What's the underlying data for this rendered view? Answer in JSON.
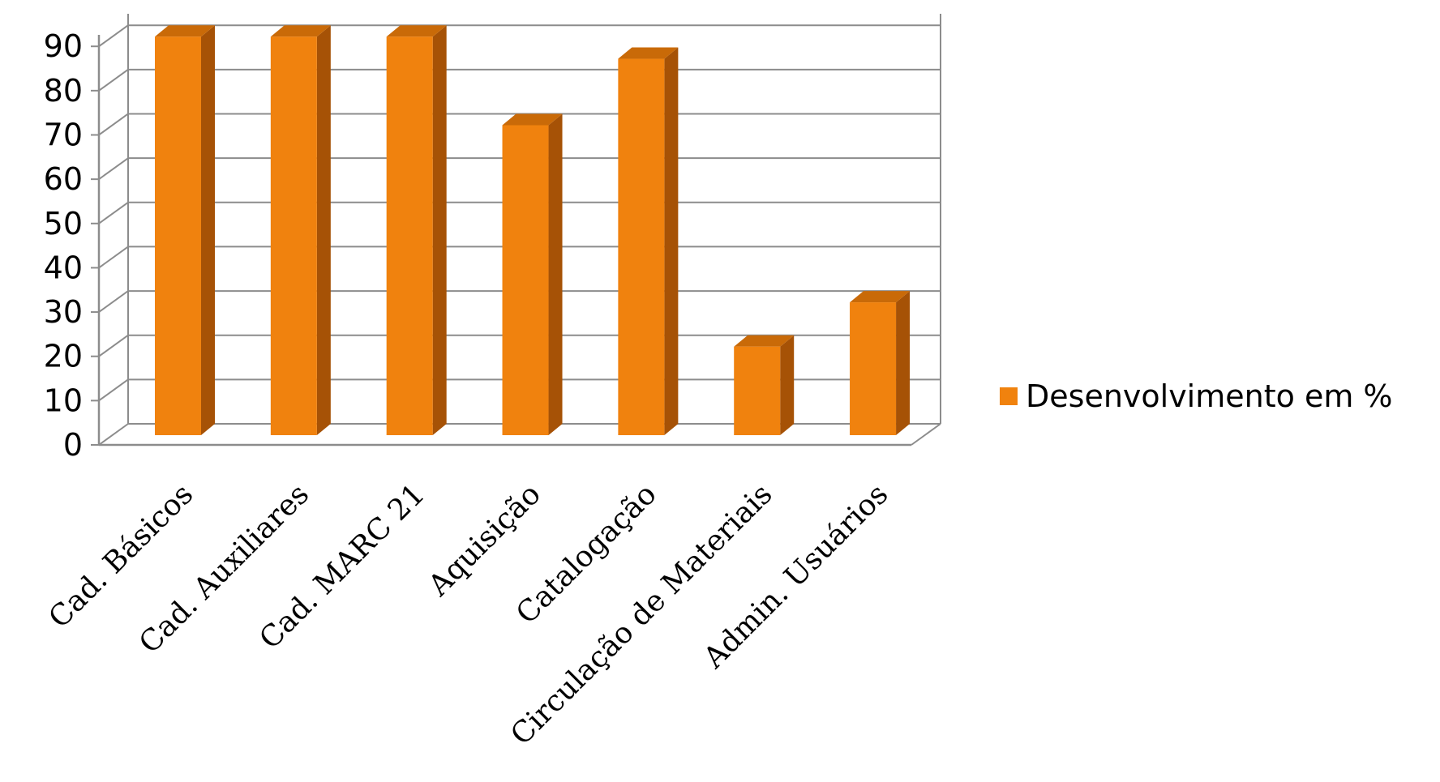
{
  "chart_data": {
    "type": "bar",
    "style": "3d-column",
    "categories": [
      "Cad. Básicos",
      "Cad. Auxiliares",
      "Cad. MARC 21",
      "Aquisição",
      "Catalogação",
      "Circulação de Materiais",
      "Admin. Usuários"
    ],
    "series": [
      {
        "name": "Desenvolvimento em %",
        "values": [
          90,
          90,
          90,
          70,
          85,
          20,
          30
        ]
      }
    ],
    "yticks": [
      "0",
      "10",
      "20",
      "30",
      "40",
      "50",
      "60",
      "70",
      "80",
      "90"
    ],
    "ylim": [
      0,
      90
    ],
    "title": "",
    "xlabel": "",
    "ylabel": "",
    "grid": true,
    "legend_position": "right",
    "colors": {
      "bar_front": "#f0820e",
      "bar_side": "#a65206",
      "bar_top": "#c96a08",
      "grid": "#8c8c8c",
      "legend_swatch": "#f0820e"
    }
  }
}
